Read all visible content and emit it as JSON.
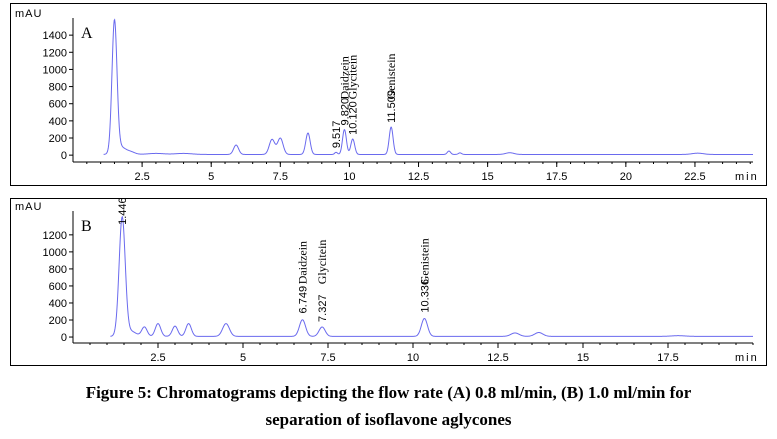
{
  "chart_data": [
    {
      "type": "line",
      "panel_label": "A",
      "ylabel": "mAU",
      "xlabel": "min",
      "xlim": [
        0,
        24.6
      ],
      "ylim": [
        -80,
        1600
      ],
      "x_ticks": [
        2.5,
        5,
        7.5,
        10,
        12.5,
        15,
        17.5,
        20,
        22.5
      ],
      "x_tick_labels": [
        "2.5",
        "5",
        "7.5",
        "10",
        "12.5",
        "15",
        "17.5",
        "20",
        "22.5"
      ],
      "y_ticks": [
        0,
        200,
        400,
        600,
        800,
        1000,
        1200,
        1400
      ],
      "y_tick_labels": [
        "0",
        "200",
        "400",
        "600",
        "800",
        "1000",
        "1200",
        "1400"
      ],
      "series": [
        {
          "color": "#6a6aee",
          "baseline": 8,
          "peaks": [
            {
              "x": 1.5,
              "h": 1520,
              "w": 0.09
            },
            {
              "x": 1.7,
              "h": 90,
              "w": 0.2
            },
            {
              "x": 2.1,
              "h": 25,
              "w": 0.15
            },
            {
              "x": 3.0,
              "h": 12,
              "w": 0.3
            },
            {
              "x": 4.0,
              "h": 12,
              "w": 0.3
            },
            {
              "x": 5.9,
              "h": 110,
              "w": 0.09
            },
            {
              "x": 7.2,
              "h": 175,
              "w": 0.1
            },
            {
              "x": 7.5,
              "h": 190,
              "w": 0.1
            },
            {
              "x": 8.5,
              "h": 250,
              "w": 0.08
            },
            {
              "x": 9.517,
              "h": 25,
              "w": 0.05
            },
            {
              "x": 9.82,
              "h": 290,
              "w": 0.07
            },
            {
              "x": 10.12,
              "h": 180,
              "w": 0.07
            },
            {
              "x": 11.509,
              "h": 320,
              "w": 0.07
            },
            {
              "x": 13.6,
              "h": 40,
              "w": 0.06
            },
            {
              "x": 14.0,
              "h": 18,
              "w": 0.06
            },
            {
              "x": 15.8,
              "h": 20,
              "w": 0.15
            },
            {
              "x": 22.6,
              "h": 15,
              "w": 0.2
            }
          ]
        }
      ],
      "peak_labels": [
        {
          "x": 9.517,
          "text": "9.517",
          "y": 35
        },
        {
          "x": 9.82,
          "text": "9.820",
          "y": 300
        },
        {
          "x": 10.12,
          "text": "10.120",
          "y": 190
        },
        {
          "x": 11.509,
          "text": "11.509",
          "y": 330
        }
      ],
      "compound_labels": [
        {
          "x": 9.82,
          "text": "Daidzein",
          "y": 650
        },
        {
          "x": 10.12,
          "text": "Glycitein",
          "y": 650
        },
        {
          "x": 11.509,
          "text": "Genistein",
          "y": 650
        }
      ]
    },
    {
      "type": "line",
      "panel_label": "B",
      "ylabel": "mAU",
      "xlabel": "min",
      "xlim": [
        0,
        20
      ],
      "ylim": [
        -70,
        1480
      ],
      "x_ticks": [
        2.5,
        5,
        7.5,
        10,
        12.5,
        15,
        17.5
      ],
      "x_tick_labels": [
        "2.5",
        "5",
        "7.5",
        "10",
        "12.5",
        "15",
        "17.5"
      ],
      "y_ticks": [
        0,
        200,
        400,
        600,
        800,
        1000,
        1200
      ],
      "y_tick_labels": [
        "0",
        "200",
        "400",
        "600",
        "800",
        "1000",
        "1200"
      ],
      "series": [
        {
          "color": "#6a6aee",
          "baseline": 8,
          "peaks": [
            {
              "x": 1.446,
              "h": 1390,
              "w": 0.09
            },
            {
              "x": 1.7,
              "h": 60,
              "w": 0.15
            },
            {
              "x": 2.1,
              "h": 110,
              "w": 0.08
            },
            {
              "x": 2.5,
              "h": 150,
              "w": 0.08
            },
            {
              "x": 3.0,
              "h": 120,
              "w": 0.08
            },
            {
              "x": 3.4,
              "h": 150,
              "w": 0.08
            },
            {
              "x": 4.5,
              "h": 150,
              "w": 0.1
            },
            {
              "x": 6.749,
              "h": 195,
              "w": 0.09
            },
            {
              "x": 7.327,
              "h": 110,
              "w": 0.09
            },
            {
              "x": 10.336,
              "h": 210,
              "w": 0.09
            },
            {
              "x": 13.0,
              "h": 40,
              "w": 0.12
            },
            {
              "x": 13.7,
              "h": 45,
              "w": 0.12
            },
            {
              "x": 17.8,
              "h": 8,
              "w": 0.2
            }
          ]
        }
      ],
      "peak_labels": [
        {
          "x": 1.446,
          "text": "1.446",
          "y": 1270
        },
        {
          "x": 6.749,
          "text": "6.749",
          "y": 230
        },
        {
          "x": 7.327,
          "text": "7.327",
          "y": 130
        },
        {
          "x": 10.336,
          "text": "10.336",
          "y": 240
        }
      ],
      "compound_labels": [
        {
          "x": 6.749,
          "text": "Daidzein",
          "y": 620
        },
        {
          "x": 7.327,
          "text": "Glycitein",
          "y": 620
        },
        {
          "x": 10.336,
          "text": "Genistein",
          "y": 620
        }
      ]
    }
  ],
  "caption_line1": "Figure 5: Chromatograms depicting the flow rate (A) 0.8 ml/min, (B) 1.0 ml/min for",
  "caption_line2": "separation of isoflavone aglycones"
}
